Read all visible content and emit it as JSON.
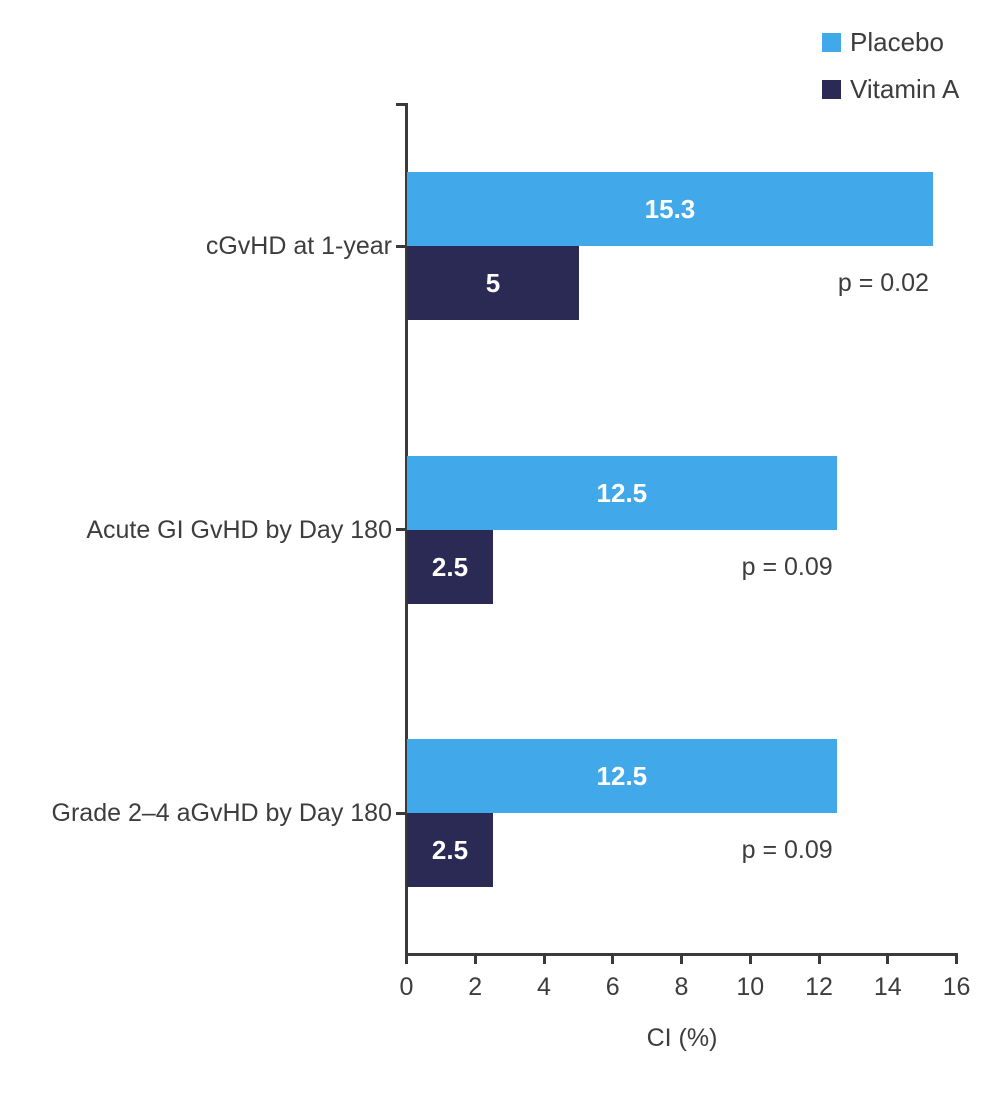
{
  "colors": {
    "text": "#3D3D3D",
    "axis": "#3A3A3A",
    "background": "#FFFFFF",
    "bar_value_text": "#FFFFFF",
    "placebo_blue": "#41A9EA",
    "vitamin_a_navy": "#2B2A54"
  },
  "legend": {
    "position": "top-right"
  },
  "chart_data": {
    "type": "bar",
    "orientation": "horizontal",
    "title": "",
    "xlabel": "CI (%)",
    "ylabel": "",
    "xlim": [
      0,
      16
    ],
    "x_ticks": [
      0,
      2,
      4,
      6,
      8,
      10,
      12,
      14,
      16
    ],
    "grid": false,
    "legend_position": "top-right",
    "categories": [
      "cGvHD at 1-year",
      "Acute GI GvHD by Day 180",
      "Grade 2–4 aGvHD by Day 180"
    ],
    "series": [
      {
        "name": "Placebo",
        "color": "#41A9EA",
        "values": [
          15.3,
          12.5,
          12.5
        ],
        "value_labels": [
          "15.3",
          "12.5",
          "12.5"
        ]
      },
      {
        "name": "Vitamin A",
        "color": "#2B2A54",
        "values": [
          5,
          2.5,
          2.5
        ],
        "value_labels": [
          "5",
          "2.5",
          "2.5"
        ]
      }
    ],
    "p_values": [
      "p = 0.02",
      "p = 0.09",
      "p = 0.09"
    ]
  }
}
